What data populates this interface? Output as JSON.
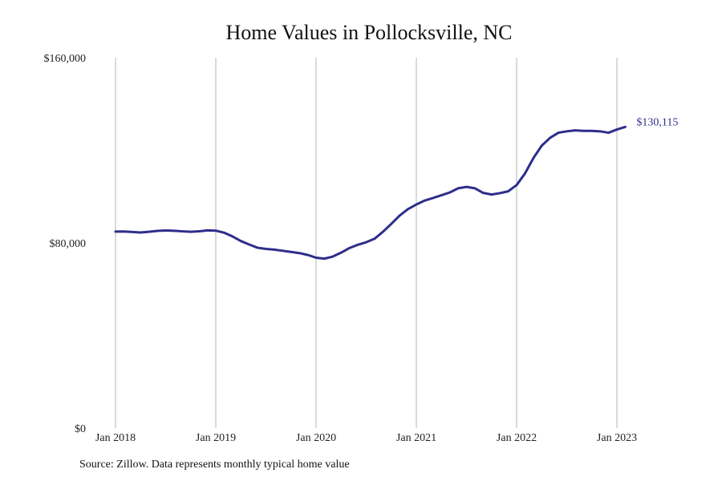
{
  "chart_data": {
    "type": "line",
    "title": "Home Values in Pollocksville, NC",
    "xlabel": "",
    "ylabel": "",
    "x_ticks": [
      "Jan 2018",
      "Jan 2019",
      "Jan 2020",
      "Jan 2021",
      "Jan 2022",
      "Jan 2023"
    ],
    "y_ticks": [
      "$0",
      "$80,000",
      "$160,000"
    ],
    "y_tick_values": [
      0,
      80000,
      160000
    ],
    "ylim": [
      0,
      160000
    ],
    "xlim": [
      "Jan 2018",
      "Jan 2023"
    ],
    "grid": "vertical lines at year ticks",
    "legend": "none",
    "end_label": "$130,115",
    "series": [
      {
        "color": "#2e2d8c",
        "points": [
          [
            "Jan 2018",
            84900
          ],
          [
            "Feb 2018",
            84950
          ],
          [
            "Mar 2018",
            84700
          ],
          [
            "Apr 2018",
            84500
          ],
          [
            "May 2018",
            84800
          ],
          [
            "Jun 2018",
            85200
          ],
          [
            "Jul 2018",
            85350
          ],
          [
            "Aug 2018",
            85250
          ],
          [
            "Sep 2018",
            85000
          ],
          [
            "Oct 2018",
            84800
          ],
          [
            "Nov 2018",
            85000
          ],
          [
            "Dec 2018",
            85400
          ],
          [
            "Jan 2019",
            85300
          ],
          [
            "Feb 2019",
            84400
          ],
          [
            "Mar 2019",
            82800
          ],
          [
            "Apr 2019",
            80800
          ],
          [
            "May 2019",
            79300
          ],
          [
            "Jun 2019",
            77900
          ],
          [
            "Jul 2019",
            77400
          ],
          [
            "Aug 2019",
            77100
          ],
          [
            "Sep 2019",
            76600
          ],
          [
            "Oct 2019",
            76100
          ],
          [
            "Nov 2019",
            75600
          ],
          [
            "Dec 2019",
            74800
          ],
          [
            "Jan 2020",
            73600
          ],
          [
            "Feb 2020",
            73200
          ],
          [
            "Mar 2020",
            74100
          ],
          [
            "Apr 2020",
            75800
          ],
          [
            "May 2020",
            77800
          ],
          [
            "Jun 2020",
            79200
          ],
          [
            "Jul 2020",
            80300
          ],
          [
            "Aug 2020",
            81800
          ],
          [
            "Sep 2020",
            84800
          ],
          [
            "Oct 2020",
            88200
          ],
          [
            "Nov 2020",
            91800
          ],
          [
            "Dec 2020",
            94600
          ],
          [
            "Jan 2021",
            96600
          ],
          [
            "Feb 2021",
            98300
          ],
          [
            "Mar 2021",
            99400
          ],
          [
            "Apr 2021",
            100600
          ],
          [
            "May 2021",
            101800
          ],
          [
            "Jun 2021",
            103600
          ],
          [
            "Jul 2021",
            104200
          ],
          [
            "Aug 2021",
            103600
          ],
          [
            "Sep 2021",
            101600
          ],
          [
            "Oct 2021",
            100900
          ],
          [
            "Nov 2021",
            101500
          ],
          [
            "Dec 2021",
            102300
          ],
          [
            "Jan 2022",
            105000
          ],
          [
            "Feb 2022",
            110000
          ],
          [
            "Mar 2022",
            116600
          ],
          [
            "Apr 2022",
            122000
          ],
          [
            "May 2022",
            125400
          ],
          [
            "Jun 2022",
            127600
          ],
          [
            "Jul 2022",
            128200
          ],
          [
            "Aug 2022",
            128600
          ],
          [
            "Sep 2022",
            128400
          ],
          [
            "Oct 2022",
            128400
          ],
          [
            "Nov 2022",
            128200
          ],
          [
            "Dec 2022",
            127600
          ],
          [
            "Jan 2023",
            129000
          ],
          [
            "Feb 2023",
            130115
          ]
        ]
      }
    ]
  },
  "footer": {
    "source": "Source: Zillow. Data represents monthly typical home value"
  },
  "style": {
    "line_color": "#2e2d8c",
    "grid_color": "#b5b5b5"
  }
}
